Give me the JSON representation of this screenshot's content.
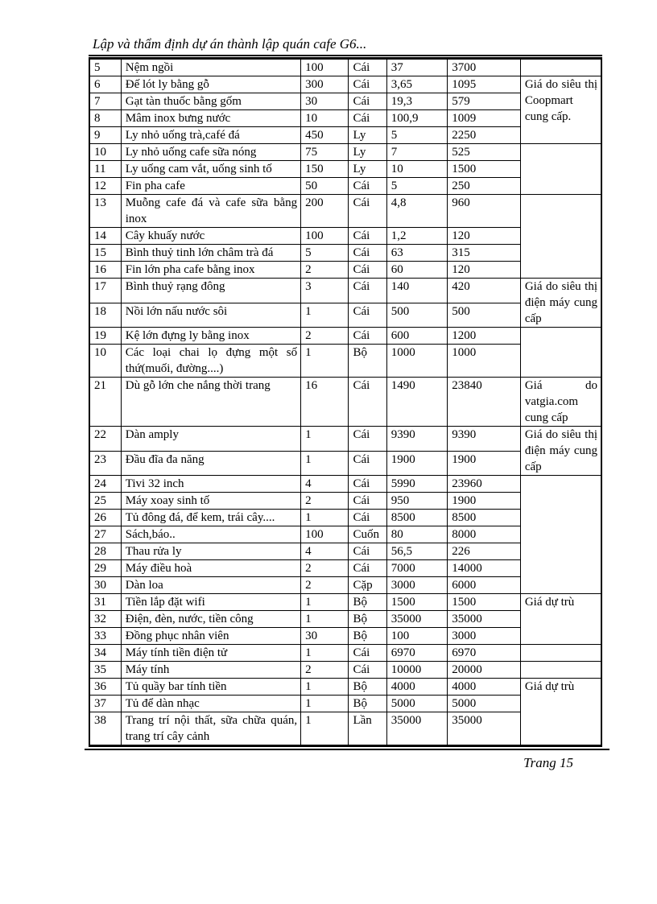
{
  "page": {
    "title": "Lập và thẩm định dự án thành lập quán cafe G6...",
    "footer": "Trang 15"
  },
  "table": {
    "rows": [
      {
        "no": "5",
        "name": "Nệm ngồi",
        "qty": "100",
        "unit": "Cái",
        "price": "37",
        "total": "3700",
        "note": {
          "text": "",
          "rowspan": 1
        }
      },
      {
        "no": "6",
        "name": "Đế lót ly bằng gỗ",
        "qty": "300",
        "unit": "Cái",
        "price": "3,65",
        "total": "1095",
        "note": {
          "text": "Giá do siêu thị Coopmart cung cấp.",
          "rowspan": 4
        }
      },
      {
        "no": "7",
        "name": "Gạt tàn thuốc bằng gốm",
        "qty": "30",
        "unit": "Cái",
        "price": "19,3",
        "total": "579"
      },
      {
        "no": "8",
        "name": "Mâm inox bưng nước",
        "qty": "10",
        "unit": "Cái",
        "price": "100,9",
        "total": "1009"
      },
      {
        "no": "9",
        "name": "Ly nhỏ uống trà,café đá",
        "qty": "450",
        "unit": "Ly",
        "price": "5",
        "total": "2250"
      },
      {
        "no": "10",
        "name": "Ly nhỏ uống cafe sữa nóng",
        "qty": "75",
        "unit": "Ly",
        "price": "7",
        "total": "525",
        "note": {
          "text": "",
          "rowspan": 3
        }
      },
      {
        "no": "11",
        "name": "Ly uống cam vắt, uống sinh tố",
        "qty": "150",
        "unit": "Ly",
        "price": "10",
        "total": "1500"
      },
      {
        "no": "12",
        "name": "Fin pha cafe",
        "qty": "50",
        "unit": "Cái",
        "price": "5",
        "total": "250"
      },
      {
        "no": "13",
        "name": "Muỗng cafe đá và cafe sữa bằng inox",
        "qty": "200",
        "unit": "Cái",
        "price": "4,8",
        "total": "960",
        "note": {
          "text": "",
          "rowspan": 4
        }
      },
      {
        "no": "14",
        "name": "Cây khuấy nước",
        "qty": "100",
        "unit": "Cái",
        "price": "1,2",
        "total": "120"
      },
      {
        "no": "15",
        "name": "Bình thuỷ tinh lớn châm trà đá",
        "qty": "5",
        "unit": "Cái",
        "price": "63",
        "total": "315"
      },
      {
        "no": "16",
        "name": "Fin lớn pha cafe bằng inox",
        "qty": "2",
        "unit": "Cái",
        "price": "60",
        "total": "120"
      },
      {
        "no": "17",
        "name": "Bình thuỷ rạng đông",
        "qty": "3",
        "unit": "Cái",
        "price": "140",
        "total": "420",
        "note": {
          "text": "Giá do siêu thị điện máy cung cấp",
          "rowspan": 2
        }
      },
      {
        "no": "18",
        "name": "Nồi lớn nấu nước sôi",
        "qty": "1",
        "unit": "Cái",
        "price": "500",
        "total": "500"
      },
      {
        "no": "19",
        "name": "Kệ lớn đựng ly bằng inox",
        "qty": "2",
        "unit": "Cái",
        "price": "600",
        "total": "1200",
        "note": {
          "text": "",
          "rowspan": 2
        }
      },
      {
        "no": "10",
        "name": "Các loại chai lọ đựng một số thứ(muối, đường....)",
        "qty": "1",
        "unit": "Bộ",
        "price": "1000",
        "total": "1000"
      },
      {
        "no": "21",
        "name": "Dù gỗ lớn che nắng thời trang",
        "qty": "16",
        "unit": "Cái",
        "price": "1490",
        "total": "23840",
        "note": {
          "text": "Giá do vatgia.com cung cấp",
          "rowspan": 1
        }
      },
      {
        "no": "22",
        "name": "Dàn amply",
        "qty": "1",
        "unit": "Cái",
        "price": "9390",
        "total": "9390",
        "note": {
          "text": "Giá do siêu thị điện máy cung cấp",
          "rowspan": 2
        }
      },
      {
        "no": "23",
        "name": "Đầu đĩa đa năng",
        "qty": "1",
        "unit": "Cái",
        "price": "1900",
        "total": "1900"
      },
      {
        "no": "24",
        "name": "Tivi 32 inch",
        "qty": "4",
        "unit": "Cái",
        "price": "5990",
        "total": "23960",
        "note": {
          "text": "",
          "rowspan": 7
        }
      },
      {
        "no": "25",
        "name": "Máy xoay sinh tố",
        "qty": "2",
        "unit": "Cái",
        "price": "950",
        "total": "1900"
      },
      {
        "no": "26",
        "name": "Tủ đông đá, để kem, trái cây....",
        "qty": "1",
        "unit": "Cái",
        "price": "8500",
        "total": "8500"
      },
      {
        "no": "27",
        "name": "Sách,báo..",
        "qty": "100",
        "unit": "Cuốn",
        "price": "80",
        "total": "8000"
      },
      {
        "no": "28",
        "name": "Thau rửa ly",
        "qty": "4",
        "unit": "Cái",
        "price": "56,5",
        "total": "226"
      },
      {
        "no": "29",
        "name": "Máy điều hoà",
        "qty": "2",
        "unit": "Cái",
        "price": "7000",
        "total": "14000"
      },
      {
        "no": "30",
        "name": "Dàn loa",
        "qty": "2",
        "unit": "Cặp",
        "price": "3000",
        "total": "6000"
      },
      {
        "no": "31",
        "name": "Tiền lắp đặt wifi",
        "qty": "1",
        "unit": "Bộ",
        "price": "1500",
        "total": "1500",
        "note": {
          "text": "Giá dự trù",
          "rowspan": 3
        }
      },
      {
        "no": "32",
        "name": "Điện, đèn, nước, tiền công",
        "qty": "1",
        "unit": "Bộ",
        "price": "35000",
        "total": "35000"
      },
      {
        "no": "33",
        "name": "Đồng phục nhân viên",
        "qty": "30",
        "unit": "Bộ",
        "price": "100",
        "total": "3000"
      },
      {
        "no": "34",
        "name": "Máy tính tiền điện tử",
        "qty": "1",
        "unit": "Cái",
        "price": "6970",
        "total": "6970",
        "note": {
          "text": "",
          "rowspan": 1
        }
      },
      {
        "no": "35",
        "name": "Máy tính",
        "qty": "2",
        "unit": "Cái",
        "price": "10000",
        "total": "20000",
        "note": {
          "text": "",
          "rowspan": 1
        }
      },
      {
        "no": "36",
        "name": "Tủ quầy bar tính tiền",
        "qty": "1",
        "unit": "Bộ",
        "price": "4000",
        "total": "4000",
        "note": {
          "text": "Giá dự trù",
          "rowspan": 3
        }
      },
      {
        "no": "37",
        "name": "Tủ để dàn nhạc",
        "qty": "1",
        "unit": "Bộ",
        "price": "5000",
        "total": "5000"
      },
      {
        "no": "38",
        "name": "Trang trí nội thất, sữa chữa quán, trang trí cây cảnh",
        "qty": "1",
        "unit": "Lần",
        "price": "35000",
        "total": "35000"
      }
    ]
  }
}
